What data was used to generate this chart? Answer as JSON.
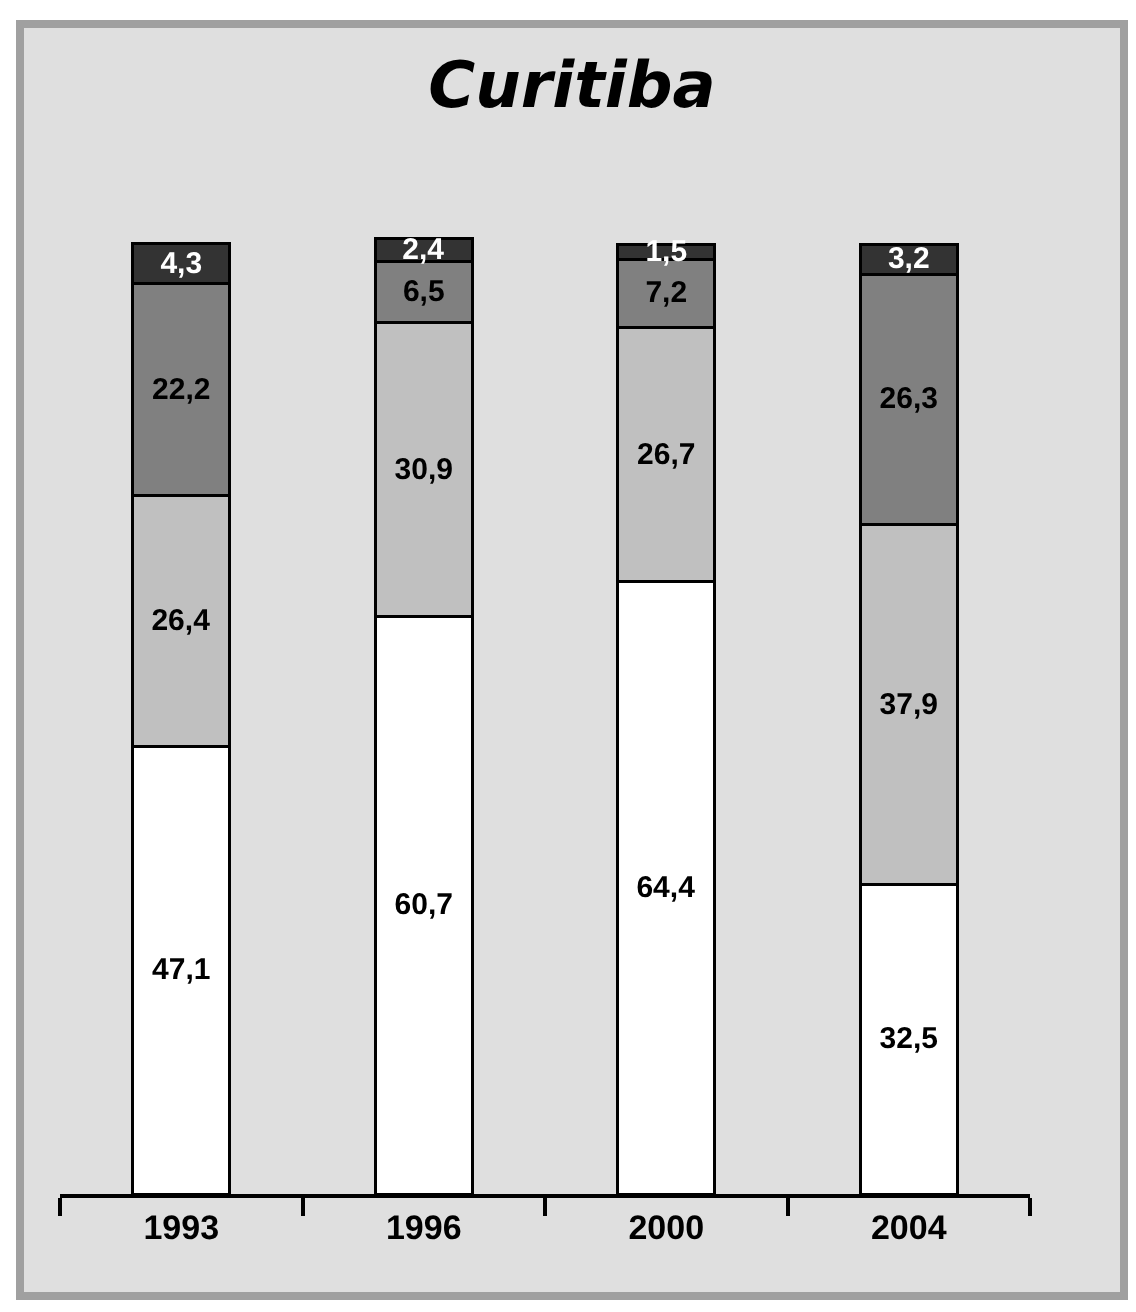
{
  "chart_data": {
    "type": "bar",
    "title": "Curitiba",
    "stacked": true,
    "categories": [
      "1993",
      "1996",
      "2000",
      "2004"
    ],
    "series": [
      {
        "color": "#ffffff",
        "values": [
          47.1,
          60.7,
          64.4,
          32.5
        ],
        "value_labels": [
          "47,1",
          "60,7",
          "64,4",
          "32,5"
        ]
      },
      {
        "color": "#c0c0c0",
        "values": [
          26.4,
          30.9,
          26.7,
          37.9
        ],
        "value_labels": [
          "26,4",
          "30,9",
          "26,7",
          "37,9"
        ]
      },
      {
        "color": "#808080",
        "values": [
          22.2,
          6.5,
          7.2,
          26.3
        ],
        "value_labels": [
          "22,2",
          "6,5",
          "7,2",
          "26,3"
        ]
      },
      {
        "color": "#333333",
        "values": [
          4.3,
          2.4,
          1.5,
          3.2
        ],
        "value_labels": [
          "4,3",
          "2,4",
          "1,5",
          "3,2"
        ]
      }
    ]
  }
}
